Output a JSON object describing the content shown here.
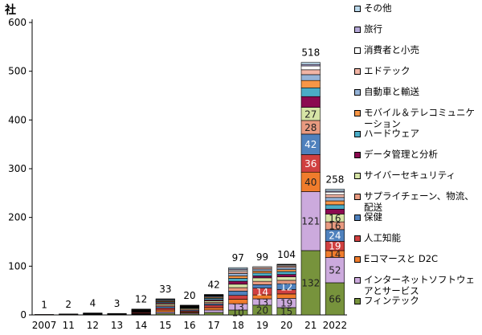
{
  "chart_data": {
    "type": "bar",
    "stacked": true,
    "unit_label": "社",
    "categories": [
      "2007",
      "11",
      "12",
      "13",
      "14",
      "15",
      "16",
      "17",
      "18",
      "19",
      "20",
      "21",
      "2022"
    ],
    "totals": [
      1,
      2,
      4,
      3,
      12,
      33,
      20,
      42,
      97,
      99,
      104,
      518,
      258
    ],
    "ylim": [
      0,
      600
    ],
    "yticks": [
      "0",
      "100",
      "200",
      "300",
      "400",
      "500",
      "600"
    ],
    "grid": false,
    "legend_position": "right",
    "series": [
      {
        "name": "フィンテック",
        "color": "#77933c",
        "values": [
          0,
          0,
          1,
          0,
          1,
          3,
          2,
          5,
          10,
          20,
          15,
          132,
          66
        ],
        "labels": [
          "",
          "",
          "",
          "",
          "",
          "",
          "",
          "",
          "10",
          "20",
          "15",
          "132",
          "66"
        ]
      },
      {
        "name": "インターネットソフトウェアとサービス",
        "color": "#ccaadd",
        "values": [
          0,
          0,
          0,
          0,
          1,
          3,
          2,
          5,
          13,
          13,
          19,
          121,
          52
        ],
        "labels": [
          "",
          "",
          "",
          "",
          "",
          "",
          "",
          "",
          "13",
          "13",
          "19",
          "121",
          "52"
        ]
      },
      {
        "name": "Eコマースと D2C",
        "color": "#f07c2c",
        "values": [
          0,
          0,
          1,
          0,
          1,
          4,
          2,
          5,
          9,
          8,
          9,
          40,
          14
        ],
        "labels": [
          "",
          "",
          "",
          "",
          "",
          "",
          "",
          "",
          "",
          "",
          "",
          "40",
          "14"
        ]
      },
      {
        "name": "人工知能",
        "color": "#d04040",
        "values": [
          1,
          0,
          0,
          1,
          2,
          4,
          2,
          5,
          8,
          14,
          9,
          36,
          19
        ],
        "labels": [
          "",
          "",
          "",
          "",
          "",
          "",
          "",
          "",
          "",
          "14",
          "",
          "36",
          "19"
        ]
      },
      {
        "name": "保健",
        "color": "#4f81bd",
        "values": [
          0,
          0,
          1,
          0,
          1,
          3,
          2,
          3,
          9,
          7,
          12,
          42,
          24
        ],
        "labels": [
          "",
          "",
          "",
          "",
          "",
          "",
          "",
          "",
          "",
          "",
          "12",
          "42",
          "24"
        ]
      },
      {
        "name": "サプライチェーン、物流、配送",
        "color": "#e89a80",
        "values": [
          0,
          1,
          0,
          1,
          1,
          3,
          2,
          3,
          7,
          7,
          7,
          28,
          16
        ],
        "labels": [
          "",
          "",
          "",
          "",
          "",
          "",
          "",
          "",
          "",
          "",
          "",
          "28",
          "16"
        ]
      },
      {
        "name": "サイバーセキュリティ",
        "color": "#d6e4a6",
        "values": [
          0,
          0,
          0,
          0,
          1,
          3,
          2,
          3,
          7,
          7,
          7,
          27,
          16
        ],
        "labels": [
          "",
          "",
          "",
          "",
          "",
          "",
          "",
          "",
          "",
          "",
          "",
          "27",
          "16"
        ]
      },
      {
        "name": "データ管理と分析",
        "color": "#8b0a50",
        "values": [
          0,
          1,
          0,
          0,
          1,
          2,
          1,
          2,
          6,
          4,
          5,
          22,
          10
        ],
        "labels": [
          "",
          "",
          "",
          "",
          "",
          "",
          "",
          "",
          "",
          "",
          "",
          "",
          ""
        ]
      },
      {
        "name": "ハードウェア",
        "color": "#4bacc6",
        "values": [
          0,
          0,
          1,
          0,
          1,
          2,
          1,
          3,
          6,
          6,
          6,
          18,
          9
        ],
        "labels": [
          "",
          "",
          "",
          "",
          "",
          "",
          "",
          "",
          "",
          "",
          "",
          "",
          ""
        ]
      },
      {
        "name": "モバイル＆テレコミュニケーション",
        "color": "#f79646",
        "values": [
          0,
          0,
          0,
          1,
          1,
          2,
          1,
          2,
          5,
          4,
          4,
          15,
          8
        ],
        "labels": [
          "",
          "",
          "",
          "",
          "",
          "",
          "",
          "",
          "",
          "",
          "",
          "",
          ""
        ]
      },
      {
        "name": "自動車と輸送",
        "color": "#95b3d7",
        "values": [
          0,
          0,
          0,
          0,
          1,
          2,
          1,
          2,
          5,
          4,
          4,
          12,
          7
        ],
        "labels": [
          "",
          "",
          "",
          "",
          "",
          "",
          "",
          "",
          "",
          "",
          "",
          "",
          ""
        ]
      },
      {
        "name": "エドテック",
        "color": "#f2b5a5",
        "values": [
          0,
          0,
          0,
          0,
          0,
          1,
          1,
          1,
          4,
          3,
          3,
          10,
          6
        ],
        "labels": [
          "",
          "",
          "",
          "",
          "",
          "",
          "",
          "",
          "",
          "",
          "",
          "",
          ""
        ]
      },
      {
        "name": "消費者と小売",
        "color": "#ffffff",
        "values": [
          0,
          0,
          0,
          0,
          0,
          1,
          1,
          1,
          3,
          2,
          2,
          8,
          5
        ],
        "labels": [
          "",
          "",
          "",
          "",
          "",
          "",
          "",
          "",
          "",
          "",
          "",
          "",
          ""
        ]
      },
      {
        "name": "旅行",
        "color": "#b4a7d6",
        "values": [
          0,
          0,
          0,
          0,
          0,
          0,
          0,
          1,
          2,
          0,
          1,
          3,
          2
        ],
        "labels": [
          "",
          "",
          "",
          "",
          "",
          "",
          "",
          "",
          "",
          "",
          "",
          "",
          ""
        ]
      },
      {
        "name": "その他",
        "color": "#b9d7ea",
        "values": [
          0,
          0,
          0,
          0,
          0,
          0,
          0,
          1,
          3,
          0,
          1,
          4,
          4
        ],
        "labels": [
          "",
          "",
          "",
          "",
          "",
          "",
          "",
          "",
          "",
          "",
          "",
          "",
          ""
        ]
      }
    ]
  }
}
